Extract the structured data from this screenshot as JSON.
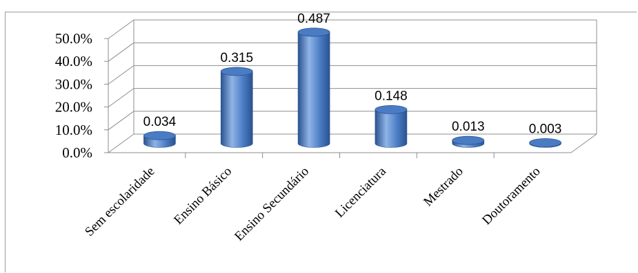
{
  "chart_data": {
    "type": "bar",
    "style": "3d-cylinder",
    "categories": [
      "Sem escolaridade",
      "Ensino Básico",
      "Ensino Secundário",
      "Licenciatura",
      "Mestrado",
      "Doutoramento"
    ],
    "values": [
      0.034,
      0.315,
      0.487,
      0.148,
      0.013,
      0.003
    ],
    "data_labels": [
      "0.034",
      "0.315",
      "0.487",
      "0.148",
      "0.013",
      "0.003"
    ],
    "y_ticks": [
      "0.0%",
      "10.0%",
      "20.0%",
      "30.0%",
      "40.0%",
      "50.0%"
    ],
    "ylim": [
      0,
      0.5
    ],
    "grid": true,
    "legend": "none",
    "colors": {
      "bar": "#4a7cc4",
      "bar_dark": "#2b5290",
      "bar_light": "#8fb4e6",
      "grid": "#8c8c8c"
    }
  }
}
